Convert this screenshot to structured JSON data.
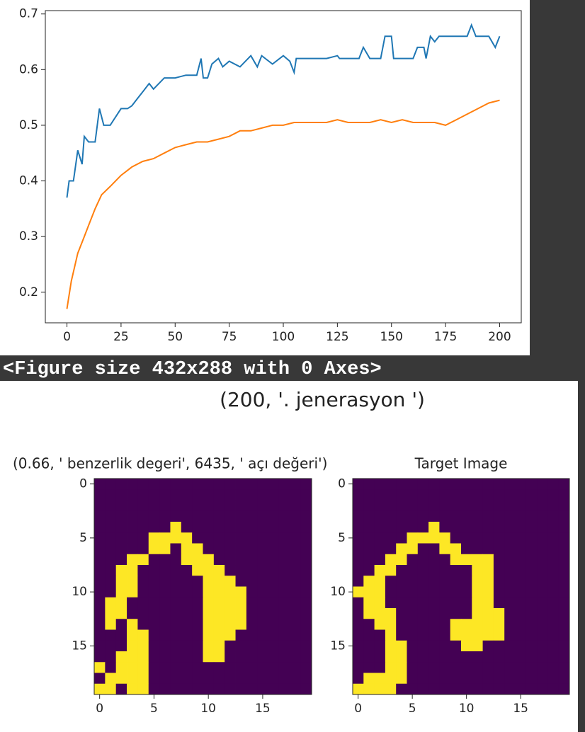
{
  "chart_data": [
    {
      "type": "line",
      "xlim": [
        -10,
        210
      ],
      "ylim": [
        0.145,
        0.706
      ],
      "xticks": [
        0,
        25,
        50,
        75,
        100,
        125,
        150,
        175,
        200
      ],
      "yticks": [
        0.2,
        0.3,
        0.4,
        0.5,
        0.6,
        0.7
      ],
      "series": [
        {
          "color": "#1f77b4",
          "x": [
            0,
            1,
            3,
            5,
            7,
            8,
            10,
            13,
            15,
            17,
            20,
            25,
            28,
            30,
            33,
            35,
            38,
            40,
            45,
            50,
            55,
            60,
            62,
            63,
            65,
            67,
            70,
            72,
            75,
            80,
            85,
            88,
            90,
            95,
            100,
            103,
            105,
            106,
            110,
            120,
            125,
            126,
            135,
            137,
            140,
            145,
            147,
            150,
            151,
            160,
            162,
            165,
            166,
            168,
            170,
            172,
            180,
            185,
            187,
            189,
            195,
            198,
            200
          ],
          "values": [
            0.37,
            0.4,
            0.4,
            0.455,
            0.43,
            0.48,
            0.47,
            0.47,
            0.53,
            0.5,
            0.5,
            0.53,
            0.53,
            0.535,
            0.55,
            0.56,
            0.575,
            0.565,
            0.585,
            0.585,
            0.59,
            0.59,
            0.62,
            0.585,
            0.585,
            0.61,
            0.62,
            0.605,
            0.615,
            0.605,
            0.625,
            0.605,
            0.625,
            0.61,
            0.625,
            0.615,
            0.595,
            0.62,
            0.62,
            0.62,
            0.625,
            0.62,
            0.62,
            0.64,
            0.62,
            0.62,
            0.66,
            0.66,
            0.62,
            0.62,
            0.64,
            0.64,
            0.62,
            0.66,
            0.65,
            0.66,
            0.66,
            0.66,
            0.68,
            0.66,
            0.66,
            0.64,
            0.66
          ]
        },
        {
          "color": "#ff7f0e",
          "x": [
            0,
            2,
            5,
            8,
            10,
            13,
            16,
            20,
            25,
            30,
            35,
            40,
            45,
            50,
            55,
            60,
            65,
            70,
            75,
            80,
            85,
            90,
            95,
            100,
            105,
            110,
            115,
            120,
            125,
            130,
            135,
            140,
            145,
            150,
            155,
            160,
            165,
            170,
            175,
            180,
            185,
            190,
            195,
            200
          ],
          "values": [
            0.17,
            0.22,
            0.27,
            0.3,
            0.32,
            0.35,
            0.375,
            0.39,
            0.41,
            0.425,
            0.435,
            0.44,
            0.45,
            0.46,
            0.465,
            0.47,
            0.47,
            0.475,
            0.48,
            0.49,
            0.49,
            0.495,
            0.5,
            0.5,
            0.505,
            0.505,
            0.505,
            0.505,
            0.51,
            0.505,
            0.505,
            0.505,
            0.51,
            0.505,
            0.51,
            0.505,
            0.505,
            0.505,
            0.5,
            0.51,
            0.52,
            0.53,
            0.54,
            0.545
          ]
        }
      ]
    },
    {
      "type": "image",
      "title": "(0.66, ' benzerlik degeri', 6435, ' açı değeri')",
      "xlim": [
        -0.5,
        19.5
      ],
      "ylim": [
        19.5,
        -0.5
      ],
      "xticks": [
        0,
        5,
        10,
        15
      ],
      "yticks": [
        0,
        5,
        10,
        15
      ],
      "colors": [
        "#440154",
        "#fde725"
      ],
      "z": [
        [
          0,
          0,
          0,
          0,
          0,
          0,
          0,
          0,
          0,
          0,
          0,
          0,
          0,
          0,
          0,
          0,
          0,
          0,
          0,
          0
        ],
        [
          0,
          0,
          0,
          0,
          0,
          0,
          0,
          0,
          0,
          0,
          0,
          0,
          0,
          0,
          0,
          0,
          0,
          0,
          0,
          0
        ],
        [
          0,
          0,
          0,
          0,
          0,
          0,
          0,
          0,
          0,
          0,
          0,
          0,
          0,
          0,
          0,
          0,
          0,
          0,
          0,
          0
        ],
        [
          0,
          0,
          0,
          0,
          0,
          0,
          0,
          0,
          0,
          0,
          0,
          0,
          0,
          0,
          0,
          0,
          0,
          0,
          0,
          0
        ],
        [
          0,
          0,
          0,
          0,
          0,
          0,
          0,
          1,
          0,
          0,
          0,
          0,
          0,
          0,
          0,
          0,
          0,
          0,
          0,
          0
        ],
        [
          0,
          0,
          0,
          0,
          0,
          1,
          1,
          1,
          1,
          0,
          0,
          0,
          0,
          0,
          0,
          0,
          0,
          0,
          0,
          0
        ],
        [
          0,
          0,
          0,
          0,
          0,
          1,
          1,
          0,
          1,
          1,
          0,
          0,
          0,
          0,
          0,
          0,
          0,
          0,
          0,
          0
        ],
        [
          0,
          0,
          0,
          1,
          1,
          0,
          0,
          0,
          1,
          1,
          1,
          0,
          0,
          0,
          0,
          0,
          0,
          0,
          0,
          0
        ],
        [
          0,
          0,
          1,
          1,
          0,
          0,
          0,
          0,
          0,
          1,
          1,
          1,
          0,
          0,
          0,
          0,
          0,
          0,
          0,
          0
        ],
        [
          0,
          0,
          1,
          1,
          0,
          0,
          0,
          0,
          0,
          0,
          1,
          1,
          1,
          0,
          0,
          0,
          0,
          0,
          0,
          0
        ],
        [
          0,
          0,
          1,
          1,
          0,
          0,
          0,
          0,
          0,
          0,
          1,
          1,
          1,
          1,
          0,
          0,
          0,
          0,
          0,
          0
        ],
        [
          0,
          1,
          1,
          0,
          0,
          0,
          0,
          0,
          0,
          0,
          1,
          1,
          1,
          1,
          0,
          0,
          0,
          0,
          0,
          0
        ],
        [
          0,
          1,
          1,
          0,
          0,
          0,
          0,
          0,
          0,
          0,
          1,
          1,
          1,
          1,
          0,
          0,
          0,
          0,
          0,
          0
        ],
        [
          0,
          1,
          0,
          1,
          0,
          0,
          0,
          0,
          0,
          0,
          1,
          1,
          1,
          1,
          0,
          0,
          0,
          0,
          0,
          0
        ],
        [
          0,
          0,
          0,
          1,
          1,
          0,
          0,
          0,
          0,
          0,
          1,
          1,
          1,
          0,
          0,
          0,
          0,
          0,
          0,
          0
        ],
        [
          0,
          0,
          0,
          1,
          1,
          0,
          0,
          0,
          0,
          0,
          1,
          1,
          0,
          0,
          0,
          0,
          0,
          0,
          0,
          0
        ],
        [
          0,
          0,
          1,
          1,
          1,
          0,
          0,
          0,
          0,
          0,
          1,
          1,
          0,
          0,
          0,
          0,
          0,
          0,
          0,
          0
        ],
        [
          1,
          0,
          1,
          1,
          1,
          0,
          0,
          0,
          0,
          0,
          0,
          0,
          0,
          0,
          0,
          0,
          0,
          0,
          0,
          0
        ],
        [
          0,
          1,
          1,
          1,
          1,
          0,
          0,
          0,
          0,
          0,
          0,
          0,
          0,
          0,
          0,
          0,
          0,
          0,
          0,
          0
        ],
        [
          1,
          1,
          0,
          1,
          1,
          0,
          0,
          0,
          0,
          0,
          0,
          0,
          0,
          0,
          0,
          0,
          0,
          0,
          0,
          0
        ]
      ]
    },
    {
      "type": "image",
      "title": "Target Image",
      "xlim": [
        -0.5,
        19.5
      ],
      "ylim": [
        19.5,
        -0.5
      ],
      "xticks": [
        0,
        5,
        10,
        15
      ],
      "yticks": [
        0,
        5,
        10,
        15
      ],
      "colors": [
        "#440154",
        "#fde725"
      ],
      "z": [
        [
          0,
          0,
          0,
          0,
          0,
          0,
          0,
          0,
          0,
          0,
          0,
          0,
          0,
          0,
          0,
          0,
          0,
          0,
          0,
          0
        ],
        [
          0,
          0,
          0,
          0,
          0,
          0,
          0,
          0,
          0,
          0,
          0,
          0,
          0,
          0,
          0,
          0,
          0,
          0,
          0,
          0
        ],
        [
          0,
          0,
          0,
          0,
          0,
          0,
          0,
          0,
          0,
          0,
          0,
          0,
          0,
          0,
          0,
          0,
          0,
          0,
          0,
          0
        ],
        [
          0,
          0,
          0,
          0,
          0,
          0,
          0,
          0,
          0,
          0,
          0,
          0,
          0,
          0,
          0,
          0,
          0,
          0,
          0,
          0
        ],
        [
          0,
          0,
          0,
          0,
          0,
          0,
          0,
          1,
          0,
          0,
          0,
          0,
          0,
          0,
          0,
          0,
          0,
          0,
          0,
          0
        ],
        [
          0,
          0,
          0,
          0,
          0,
          1,
          1,
          1,
          1,
          0,
          0,
          0,
          0,
          0,
          0,
          0,
          0,
          0,
          0,
          0
        ],
        [
          0,
          0,
          0,
          0,
          1,
          1,
          0,
          0,
          1,
          1,
          0,
          0,
          0,
          0,
          0,
          0,
          0,
          0,
          0,
          0
        ],
        [
          0,
          0,
          0,
          1,
          1,
          0,
          0,
          0,
          0,
          1,
          1,
          1,
          1,
          0,
          0,
          0,
          0,
          0,
          0,
          0
        ],
        [
          0,
          0,
          1,
          1,
          0,
          0,
          0,
          0,
          0,
          0,
          0,
          1,
          1,
          0,
          0,
          0,
          0,
          0,
          0,
          0
        ],
        [
          0,
          1,
          1,
          0,
          0,
          0,
          0,
          0,
          0,
          0,
          0,
          1,
          1,
          0,
          0,
          0,
          0,
          0,
          0,
          0
        ],
        [
          1,
          1,
          1,
          0,
          0,
          0,
          0,
          0,
          0,
          0,
          0,
          1,
          1,
          0,
          0,
          0,
          0,
          0,
          0,
          0
        ],
        [
          0,
          1,
          1,
          0,
          0,
          0,
          0,
          0,
          0,
          0,
          0,
          1,
          1,
          0,
          0,
          0,
          0,
          0,
          0,
          0
        ],
        [
          0,
          1,
          1,
          1,
          0,
          0,
          0,
          0,
          0,
          0,
          0,
          1,
          1,
          1,
          0,
          0,
          0,
          0,
          0,
          0
        ],
        [
          0,
          0,
          1,
          1,
          0,
          0,
          0,
          0,
          0,
          1,
          1,
          1,
          1,
          1,
          0,
          0,
          0,
          0,
          0,
          0
        ],
        [
          0,
          0,
          0,
          1,
          0,
          0,
          0,
          0,
          0,
          1,
          1,
          1,
          1,
          1,
          0,
          0,
          0,
          0,
          0,
          0
        ],
        [
          0,
          0,
          0,
          1,
          1,
          0,
          0,
          0,
          0,
          0,
          1,
          1,
          0,
          0,
          0,
          0,
          0,
          0,
          0,
          0
        ],
        [
          0,
          0,
          0,
          1,
          1,
          0,
          0,
          0,
          0,
          0,
          0,
          0,
          0,
          0,
          0,
          0,
          0,
          0,
          0,
          0
        ],
        [
          0,
          0,
          0,
          1,
          1,
          0,
          0,
          0,
          0,
          0,
          0,
          0,
          0,
          0,
          0,
          0,
          0,
          0,
          0,
          0
        ],
        [
          0,
          1,
          1,
          1,
          1,
          0,
          0,
          0,
          0,
          0,
          0,
          0,
          0,
          0,
          0,
          0,
          0,
          0,
          0,
          0
        ],
        [
          1,
          1,
          1,
          1,
          0,
          0,
          0,
          0,
          0,
          0,
          0,
          0,
          0,
          0,
          0,
          0,
          0,
          0,
          0,
          0
        ]
      ]
    }
  ],
  "console_text": "<Figure size 432x288 with 0 Axes>",
  "figure_title": "(200, '. jenerasyon ')"
}
